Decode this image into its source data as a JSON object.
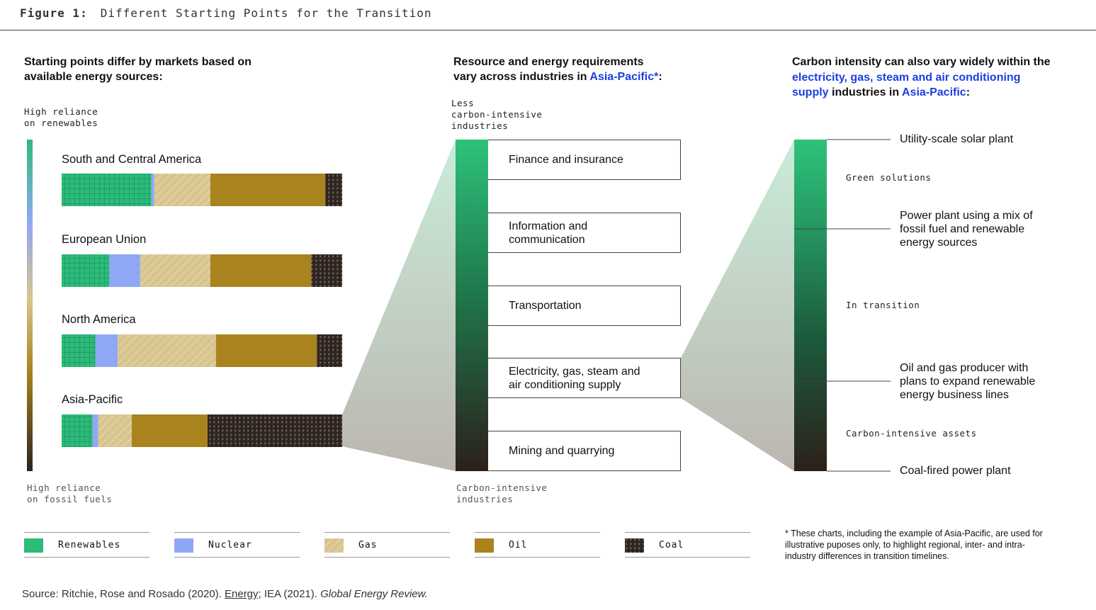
{
  "figure": {
    "label": "Figure 1:",
    "title": "Different Starting Points for the Transition"
  },
  "left": {
    "heading": "Starting points differ by markets based on available energy sources:",
    "top_axis": [
      "High reliance",
      "on renewables"
    ],
    "bottom_axis": [
      "High reliance",
      "on fossil fuels"
    ]
  },
  "middle": {
    "heading_1": "Resource and energy requirements",
    "heading_2": "vary across industries in ",
    "heading_link": "Asia-Pacific*",
    "heading_end": ":",
    "top_label": [
      "Less",
      "carbon-intensive",
      "industries"
    ],
    "bottom_label": [
      "Carbon-intensive",
      "industries"
    ],
    "industries": [
      "Finance and insurance",
      "Information and communication",
      "Transportation",
      "Electricity, gas, steam and air conditioning supply",
      "Mining and quarrying"
    ]
  },
  "right": {
    "heading_1": "Carbon intensity can also vary widely within",
    "heading_2": "the ",
    "heading_link1": "electricity, gas, steam and air conditioning",
    "heading_link2": "supply",
    "heading_3": " industries in ",
    "heading_link3": "Asia-Pacific",
    "heading_end": ":",
    "examples": [
      "Utility-scale solar plant",
      "Power plant using a mix of fossil fuel and renewable energy sources",
      "Oil and gas producer with plans to expand renewable energy business lines",
      "Coal-fired power plant"
    ],
    "zones": [
      "Green solutions",
      "In transition",
      "Carbon-intensive assets"
    ]
  },
  "legend": [
    "Renewables",
    "Nuclear",
    "Gas",
    "Oil",
    "Coal"
  ],
  "note": "* These charts, including the example of Asia-Pacific, are used for illustrative puposes only, to highlight regional, inter- and intra-industry differences in transition timelines.",
  "source": {
    "text": "Source: Ritchie, Rose and Rosado (2020).  ",
    "link": "Energy",
    "mid": "; IEA (2021). ",
    "italic": "Global Energy Review."
  },
  "colors": {
    "renewables": "#2dbb78",
    "nuclear": "#8fa8f5",
    "gas": "#d8c48e",
    "oil": "#a8831e",
    "coal": "#2d2420"
  },
  "chart_data": {
    "type": "bar",
    "stacked": true,
    "orientation": "horizontal",
    "unit": "% of energy mix",
    "categories": [
      "South and Central America",
      "European Union",
      "North America",
      "Asia-Pacific"
    ],
    "series": [
      {
        "name": "Renewables",
        "values": [
          32,
          17,
          12,
          11
        ]
      },
      {
        "name": "Nuclear",
        "values": [
          1,
          11,
          8,
          2
        ]
      },
      {
        "name": "Gas",
        "values": [
          20,
          25,
          35,
          12
        ]
      },
      {
        "name": "Oil",
        "values": [
          41,
          36,
          36,
          27
        ]
      },
      {
        "name": "Coal",
        "values": [
          6,
          11,
          9,
          48
        ]
      }
    ]
  }
}
